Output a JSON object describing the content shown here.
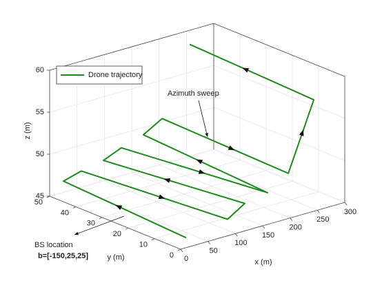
{
  "chart_data": {
    "type": "line3d",
    "xlabel": "x (m)",
    "ylabel": "y (m)",
    "zlabel": "z (m)",
    "xlim": [
      0,
      300
    ],
    "ylim": [
      0,
      50
    ],
    "zlim": [
      45,
      60
    ],
    "xticks": [
      0,
      50,
      100,
      150,
      200,
      250,
      300
    ],
    "yticks": [
      0,
      10,
      20,
      30,
      40,
      50
    ],
    "zticks": [
      45,
      50,
      55,
      60
    ],
    "grid": true,
    "legend": "upper left",
    "series": [
      {
        "name": "Drone trajectory",
        "color": "#1a8a1a",
        "x": [
          34.0,
          1.3,
          34.0,
          109.7,
          141.2,
          74.4,
          107.2,
          182.8,
          147.5,
          181.6,
          220.7,
          267.3,
          232.0
        ],
        "y": [
          5,
          45,
          45,
          5,
          5,
          45,
          45,
          5,
          45,
          45,
          5,
          5,
          45
        ],
        "z": [
          45.1,
          47.4,
          48.0,
          45.9,
          47.2,
          48.5,
          49.4,
          47.7,
          50.2,
          51.5,
          49.3,
          57.2,
          59.4
        ]
      }
    ],
    "annotations": [
      "Azimuth sweep",
      "BS location",
      "b=[-150,25,25]"
    ]
  }
}
